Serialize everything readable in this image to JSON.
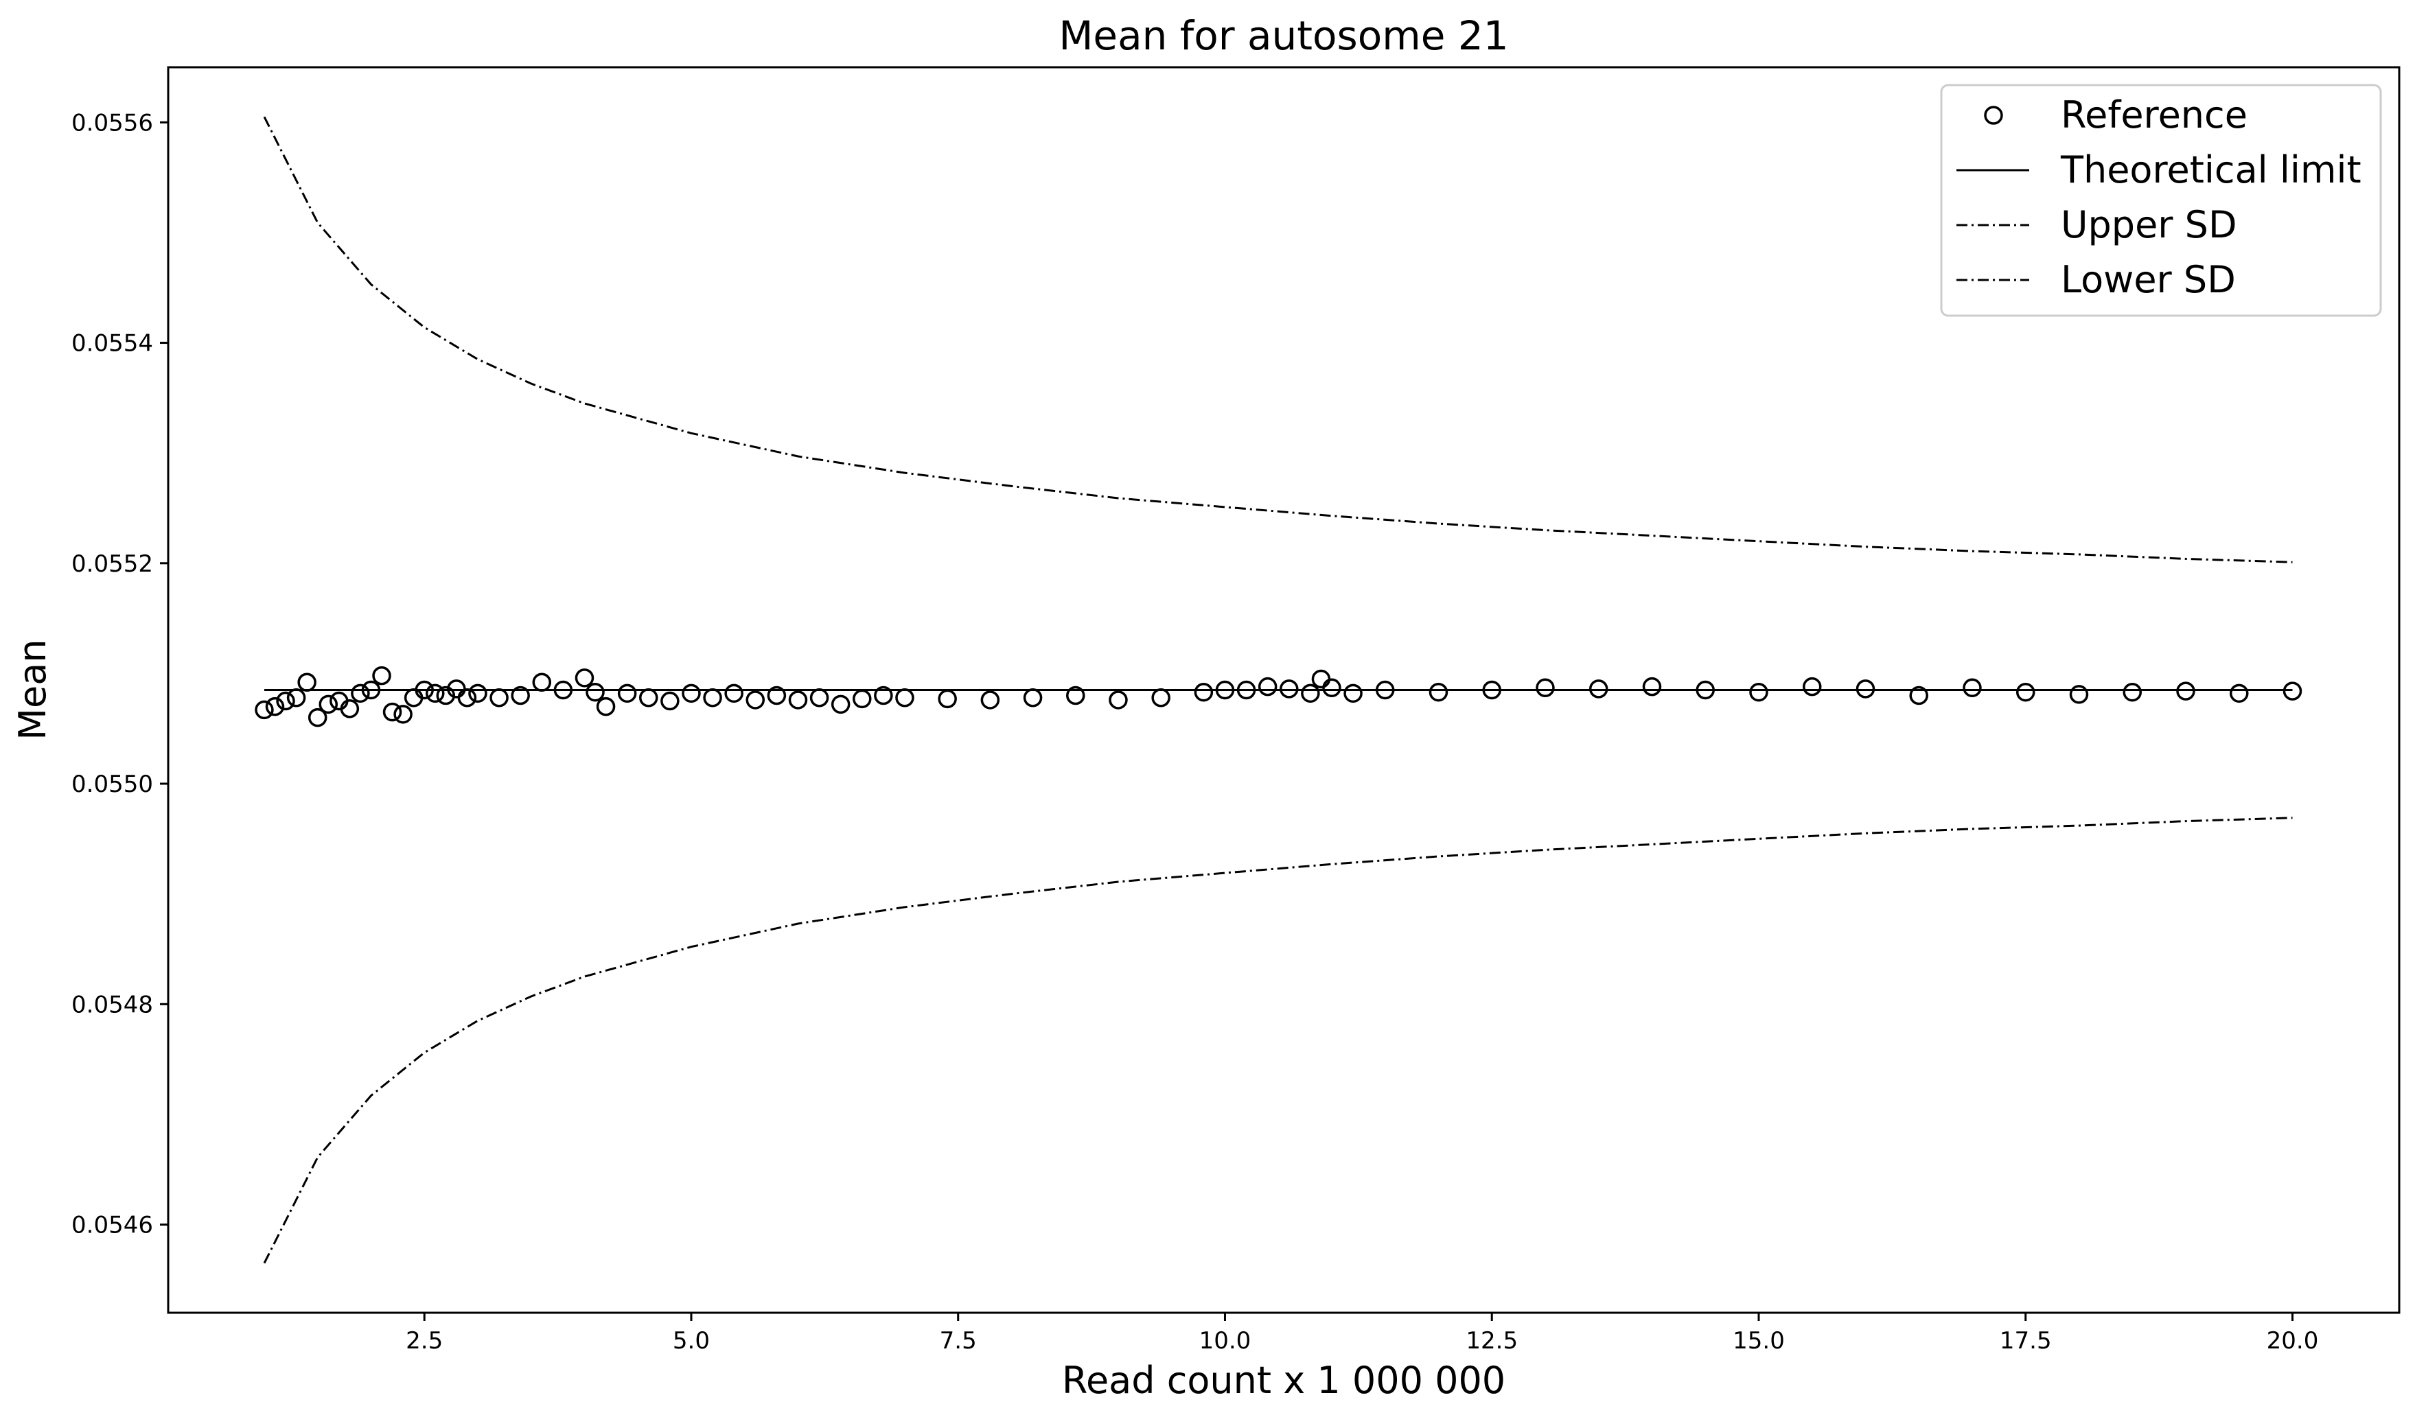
{
  "chart_data": {
    "type": "line",
    "title": "Mean for autosome 21",
    "xlabel": "Read count x 1 000 000",
    "ylabel": "Mean",
    "xlim": [
      0.1,
      21.0
    ],
    "ylim": [
      0.05452,
      0.05565
    ],
    "xticks": [
      2.5,
      5.0,
      7.5,
      10.0,
      12.5,
      15.0,
      17.5,
      20.0
    ],
    "xtick_labels": [
      "2.5",
      "5.0",
      "7.5",
      "10.0",
      "12.5",
      "15.0",
      "17.5",
      "20.0"
    ],
    "yticks": [
      0.0546,
      0.0548,
      0.055,
      0.0552,
      0.0554,
      0.0556
    ],
    "ytick_labels": [
      "0.0546",
      "0.0548",
      "0.0550",
      "0.0552",
      "0.0554",
      "0.0556"
    ],
    "grid": false,
    "legend_position": "top-right",
    "series": [
      {
        "name": "Reference",
        "style": "open-circles",
        "color": "#000000",
        "x": [
          1.0,
          1.1,
          1.2,
          1.3,
          1.4,
          1.5,
          1.6,
          1.7,
          1.8,
          1.9,
          2.0,
          2.1,
          2.2,
          2.3,
          2.4,
          2.5,
          2.6,
          2.7,
          2.8,
          2.9,
          3.0,
          3.2,
          3.4,
          3.6,
          3.8,
          4.0,
          4.1,
          4.2,
          4.4,
          4.6,
          4.8,
          5.0,
          5.2,
          5.4,
          5.6,
          5.8,
          6.0,
          6.2,
          6.4,
          6.6,
          6.8,
          7.0,
          7.4,
          7.8,
          8.2,
          8.6,
          9.0,
          9.4,
          9.8,
          10.0,
          10.2,
          10.4,
          10.6,
          10.8,
          10.9,
          11.0,
          11.2,
          11.5,
          12.0,
          12.5,
          13.0,
          13.5,
          14.0,
          14.5,
          15.0,
          15.5,
          16.0,
          16.5,
          17.0,
          17.5,
          18.0,
          18.5,
          19.0,
          19.5,
          20.0
        ],
        "y": [
          0.055067,
          0.05507,
          0.055075,
          0.055078,
          0.055092,
          0.05506,
          0.055072,
          0.055075,
          0.055068,
          0.055082,
          0.055085,
          0.055098,
          0.055065,
          0.055063,
          0.055078,
          0.055085,
          0.055082,
          0.05508,
          0.055086,
          0.055078,
          0.055082,
          0.055078,
          0.05508,
          0.055092,
          0.055085,
          0.055096,
          0.055083,
          0.05507,
          0.055082,
          0.055078,
          0.055075,
          0.055082,
          0.055078,
          0.055082,
          0.055076,
          0.05508,
          0.055076,
          0.055078,
          0.055072,
          0.055077,
          0.05508,
          0.055078,
          0.055077,
          0.055076,
          0.055078,
          0.05508,
          0.055076,
          0.055078,
          0.055083,
          0.055085,
          0.055085,
          0.055088,
          0.055086,
          0.055082,
          0.055095,
          0.055087,
          0.055082,
          0.055085,
          0.055083,
          0.055085,
          0.055087,
          0.055086,
          0.055088,
          0.055085,
          0.055083,
          0.055088,
          0.055086,
          0.05508,
          0.055087,
          0.055083,
          0.055081,
          0.055083,
          0.055084,
          0.055082,
          0.055084
        ]
      },
      {
        "name": "Theoretical limit",
        "style": "solid",
        "color": "#000000",
        "x": [
          1.0,
          20.0
        ],
        "y": [
          0.055085,
          0.055085
        ]
      },
      {
        "name": "Upper SD",
        "style": "dash-dot",
        "color": "#000000",
        "x": [
          1.0,
          1.5,
          2.0,
          2.5,
          3.0,
          3.5,
          4.0,
          5.0,
          6.0,
          7.0,
          8.0,
          9.0,
          10.0,
          11.0,
          12.0,
          13.0,
          14.0,
          15.0,
          16.0,
          17.0,
          18.0,
          19.0,
          20.0
        ],
        "y": [
          0.055605,
          0.055509,
          0.055453,
          0.055414,
          0.055385,
          0.055363,
          0.055345,
          0.055318,
          0.055297,
          0.055282,
          0.05527,
          0.055259,
          0.055251,
          0.055243,
          0.055236,
          0.05523,
          0.055225,
          0.05522,
          0.055215,
          0.055211,
          0.055208,
          0.055204,
          0.055201
        ]
      },
      {
        "name": "Lower SD",
        "style": "dash-dot",
        "color": "#000000",
        "x": [
          1.0,
          1.5,
          2.0,
          2.5,
          3.0,
          3.5,
          4.0,
          5.0,
          6.0,
          7.0,
          8.0,
          9.0,
          10.0,
          11.0,
          12.0,
          13.0,
          14.0,
          15.0,
          16.0,
          17.0,
          18.0,
          19.0,
          20.0
        ],
        "y": [
          0.054565,
          0.054661,
          0.054717,
          0.054756,
          0.054785,
          0.054807,
          0.054825,
          0.054852,
          0.054873,
          0.054888,
          0.0549,
          0.054911,
          0.054919,
          0.054927,
          0.054934,
          0.05494,
          0.054945,
          0.05495,
          0.054955,
          0.054959,
          0.054962,
          0.054966,
          0.054969
        ]
      }
    ]
  }
}
